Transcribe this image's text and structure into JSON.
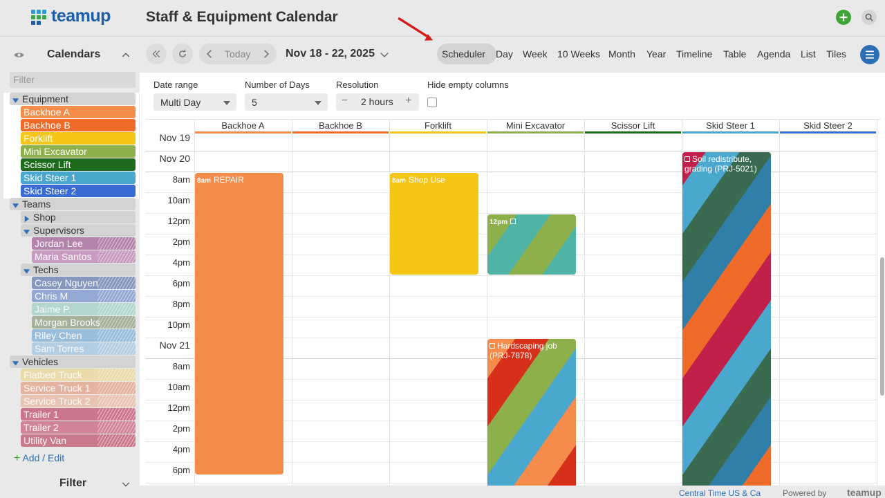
{
  "header": {
    "logo": "teamup",
    "title": "Staff & Equipment Calendar"
  },
  "sidebar": {
    "heading": "Calendars",
    "filter_placeholder": "Filter",
    "tree": [
      {
        "label": "Equipment",
        "selected": true,
        "children": [
          {
            "label": "Backhoe A",
            "color": "#f68c4c"
          },
          {
            "label": "Backhoe B",
            "color": "#f06a2a"
          },
          {
            "label": "Forklift",
            "color": "#f5c518"
          },
          {
            "label": "Mini Excavator",
            "color": "#8db04a"
          },
          {
            "label": "Scissor Lift",
            "color": "#1e6b1e"
          },
          {
            "label": "Skid Steer 1",
            "color": "#4aa8cf"
          },
          {
            "label": "Skid Steer 2",
            "color": "#3a6bd4"
          }
        ]
      },
      {
        "label": "Teams",
        "children": [
          {
            "label": "Shop",
            "expanded": false,
            "children": []
          },
          {
            "label": "Supervisors",
            "children": [
              {
                "label": "Jordan Lee",
                "color": "#a66a9c",
                "hatched": true
              },
              {
                "label": "Maria Santos",
                "color": "#c08ab8",
                "hatched": true
              }
            ]
          },
          {
            "label": "Techs",
            "children": [
              {
                "label": "Casey Nguyen",
                "color": "#6f84b5",
                "hatched": true
              },
              {
                "label": "Chris M",
                "color": "#7e9ad0",
                "hatched": true
              },
              {
                "label": "Jaime P.",
                "color": "#a6d2c8",
                "hatched": true
              },
              {
                "label": "Morgan Brooks",
                "color": "#94a488",
                "hatched": true
              },
              {
                "label": "Riley Chen",
                "color": "#86b4da",
                "hatched": true
              },
              {
                "label": "Sam Torres",
                "color": "#a6c8e2",
                "hatched": true
              }
            ]
          }
        ]
      },
      {
        "label": "Vehicles",
        "children": [
          {
            "label": "Flatbed Truck",
            "color": "#ecd89c",
            "hatched": true
          },
          {
            "label": "Service Truck 1",
            "color": "#e4a88e",
            "hatched": true
          },
          {
            "label": "Service Truck 2",
            "color": "#e8bca6",
            "hatched": true
          },
          {
            "label": "Trailer 1",
            "color": "#c45a78",
            "hatched": true
          },
          {
            "label": "Trailer 2",
            "color": "#cc6c84",
            "hatched": true
          },
          {
            "label": "Utility Van",
            "color": "#c25e72",
            "hatched": true
          }
        ]
      }
    ],
    "add_edit": "Add / Edit",
    "filter_heading": "Filter"
  },
  "toolbar": {
    "today": "Today",
    "date_range": "Nov 18 - 22, 2025",
    "active_view": "Scheduler",
    "views": [
      "Scheduler",
      "Day",
      "Week",
      "10 Weeks",
      "Month",
      "Year",
      "Timeline",
      "Table",
      "Agenda",
      "List",
      "Tiles"
    ]
  },
  "options": {
    "date_range_label": "Date range",
    "date_range_value": "Multi Day",
    "days_label": "Number of Days",
    "days_value": "5",
    "resolution_label": "Resolution",
    "resolution_value": "2 hours",
    "hide_empty_label": "Hide empty columns"
  },
  "scheduler": {
    "columns": [
      {
        "label": "Backhoe A",
        "color": "#f68c4c"
      },
      {
        "label": "Backhoe B",
        "color": "#f06a2a"
      },
      {
        "label": "Forklift",
        "color": "#f5c518"
      },
      {
        "label": "Mini Excavator",
        "color": "#8db04a"
      },
      {
        "label": "Scissor Lift",
        "color": "#1e6b1e"
      },
      {
        "label": "Skid Steer 1",
        "color": "#4aa8cf"
      },
      {
        "label": "Skid Steer 2",
        "color": "#3a6bd4"
      }
    ],
    "rows": [
      "Nov 19",
      "Nov 20",
      "8am",
      "10am",
      "12pm",
      "2pm",
      "4pm",
      "6pm",
      "8pm",
      "10pm",
      "Nov 21",
      "8am",
      "10am",
      "12pm",
      "2pm",
      "4pm",
      "6pm"
    ],
    "events": [
      {
        "time": "8am",
        "title": "REPAIR",
        "colors": [
          "#f68c4c"
        ]
      },
      {
        "time": "8am",
        "title": "Shop Use",
        "colors": [
          "#f5c518"
        ]
      },
      {
        "time": "12pm",
        "colors": [
          "#4fb3a5",
          "#8db04a"
        ]
      },
      {
        "title": "Hardscaping job (PRJ-7878)",
        "colors": [
          "#d6301a",
          "#f68c4c",
          "#4aa8cf",
          "#8db04a"
        ]
      },
      {
        "title": "Soil redistribute, grading (PRJ-5021)",
        "colors": [
          "#f06a2a",
          "#2f7fa8",
          "#3a6b50",
          "#4aa8cf",
          "#c0204a"
        ]
      }
    ]
  },
  "footer": {
    "timezone": "Central Time US & Ca",
    "powered_by": "Powered by",
    "brand": "teamup"
  }
}
